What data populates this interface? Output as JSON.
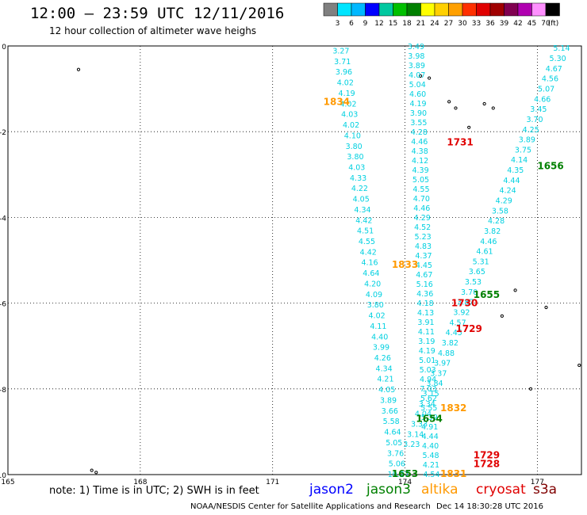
{
  "header": {
    "title": "12:00 – 23:59 UTC 12/11/2016",
    "subtitle": "12 hour collection of altimeter wave heighs"
  },
  "legend": {
    "unit": "(ft)",
    "levels": [
      "3",
      "6",
      "9",
      "12",
      "15",
      "18",
      "21",
      "24",
      "27",
      "30",
      "33",
      "36",
      "39",
      "42",
      "45",
      "70"
    ],
    "colors": [
      "#808080",
      "#00e5ff",
      "#00b8ff",
      "#0000ff",
      "#00c8a0",
      "#00c000",
      "#008000",
      "#ffff00",
      "#ffd000",
      "#ffa000",
      "#ff3000",
      "#e00000",
      "#a00000",
      "#800050",
      "#b000b0",
      "#ff90ff",
      "#000000"
    ]
  },
  "map": {
    "lon_min": 165,
    "lon_max": 178,
    "lat_min": -10,
    "lat_max": 0,
    "x_ticks": [
      {
        "value": 165,
        "label": "165"
      },
      {
        "value": 168,
        "label": "168"
      },
      {
        "value": 171,
        "label": "171"
      },
      {
        "value": 174,
        "label": "174"
      },
      {
        "value": 177,
        "label": "177"
      }
    ],
    "y_ticks": [
      {
        "value": 0,
        "label": "0"
      },
      {
        "value": -2,
        "label": "-2"
      },
      {
        "value": -4,
        "label": "-4"
      },
      {
        "value": -6,
        "label": "-6"
      },
      {
        "value": -8,
        "label": "-8"
      },
      {
        "value": -10,
        "label": "-10"
      }
    ],
    "swh_color": "#00d0e0",
    "tracks": [
      {
        "name": "pass-1834",
        "start": [
          172.55,
          -0.12
        ],
        "end": [
          173.85,
          -10.0
        ],
        "values": [
          "3.27",
          "3.71",
          "3.96",
          "4.02",
          "4.19",
          "4.02",
          "4.03",
          "4.02",
          "4.10",
          "3.80",
          "3.80",
          "4.03",
          "4.33",
          "4.22",
          "4.05",
          "4.34",
          "4.42",
          "4.51",
          "4.55",
          "4.42",
          "4.16",
          "4.64",
          "4.20",
          "4.09",
          "3.80",
          "4.02",
          "4.11",
          "4.40",
          "3.99",
          "4.26",
          "4.34",
          "4.21",
          "4.05",
          "3.89",
          "3.66",
          "5.58",
          "4.64",
          "5.05",
          "3.76",
          "5.06",
          "10.27"
        ]
      },
      {
        "name": "pass-1831",
        "start": [
          174.25,
          -0.02
        ],
        "end": [
          174.6,
          -10.0
        ],
        "values": [
          "3.49",
          "3.98",
          "3.89",
          "4.07",
          "5.04",
          "4.60",
          "4.19",
          "3.90",
          "3.55",
          "4.28",
          "4.46",
          "4.38",
          "4.12",
          "4.39",
          "5.05",
          "4.55",
          "4.70",
          "4.46",
          "4.29",
          "4.52",
          "5.23",
          "4.83",
          "4.37",
          "4.45",
          "4.67",
          "5.16",
          "4.36",
          "4.18",
          "4.13",
          "3.91",
          "4.11",
          "3.19",
          "4.19",
          "5.01",
          "5.03",
          "4.94",
          "7.03",
          "5.62",
          "5.55",
          "5.39",
          "4.91",
          "4.44",
          "4.40",
          "5.48",
          "4.21",
          "4.54"
        ]
      },
      {
        "name": "pass-1656",
        "start": [
          177.55,
          -0.06
        ],
        "end": [
          174.15,
          -9.3
        ],
        "values": [
          "5.14",
          "5.30",
          "4.67",
          "4.56",
          "5.07",
          "4.66",
          "3.45",
          "3.70",
          "4.25",
          "3.89",
          "3.75",
          "4.14",
          "4.35",
          "4.44",
          "4.24",
          "4.29",
          "3.58",
          "4.28",
          "3.82",
          "4.46",
          "4.61",
          "5.31",
          "3.65",
          "3.53",
          "3.70",
          "3.87",
          "3.92",
          "4.57",
          "4.45",
          "3.82",
          "4.88",
          "3.97",
          "3.37",
          "3.84",
          "3.15",
          "3.34",
          "4.04",
          "3.33",
          "3.14",
          "3.23"
        ]
      }
    ],
    "time_labels": [
      {
        "text": "1834",
        "lon": 172.45,
        "lat": -1.3,
        "color": "#ff9900"
      },
      {
        "text": "1731",
        "lon": 175.25,
        "lat": -2.25,
        "color": "#e00000"
      },
      {
        "text": "1656",
        "lon": 177.3,
        "lat": -2.8,
        "color": "#008000"
      },
      {
        "text": "1833",
        "lon": 174.0,
        "lat": -5.1,
        "color": "#ff9900"
      },
      {
        "text": "1655",
        "lon": 175.85,
        "lat": -5.8,
        "color": "#008000"
      },
      {
        "text": "1730",
        "lon": 175.35,
        "lat": -6.0,
        "color": "#e00000"
      },
      {
        "text": "1729",
        "lon": 175.45,
        "lat": -6.6,
        "color": "#e00000"
      },
      {
        "text": "1832",
        "lon": 175.1,
        "lat": -8.45,
        "color": "#ff9900"
      },
      {
        "text": "1654",
        "lon": 174.55,
        "lat": -8.7,
        "color": "#008000"
      },
      {
        "text": "1729",
        "lon": 175.85,
        "lat": -9.55,
        "color": "#e00000"
      },
      {
        "text": "1728",
        "lon": 175.85,
        "lat": -9.75,
        "color": "#e00000"
      },
      {
        "text": "1653",
        "lon": 174.0,
        "lat": -9.98,
        "color": "#008000"
      },
      {
        "text": "1831",
        "lon": 175.1,
        "lat": -9.98,
        "color": "#ff9900"
      }
    ],
    "islands": [
      {
        "lon": 166.6,
        "lat": -0.55
      },
      {
        "lon": 174.35,
        "lat": -0.7
      },
      {
        "lon": 174.55,
        "lat": -0.75
      },
      {
        "lon": 175.0,
        "lat": -1.3
      },
      {
        "lon": 175.15,
        "lat": -1.45
      },
      {
        "lon": 175.45,
        "lat": -1.9
      },
      {
        "lon": 175.8,
        "lat": -1.35
      },
      {
        "lon": 176.0,
        "lat": -1.45
      },
      {
        "lon": 176.5,
        "lat": -5.7
      },
      {
        "lon": 177.2,
        "lat": -6.1
      },
      {
        "lon": 176.2,
        "lat": -6.3
      },
      {
        "lon": 177.95,
        "lat": -7.45
      },
      {
        "lon": 176.85,
        "lat": -8.0
      },
      {
        "lon": 166.9,
        "lat": -9.9
      },
      {
        "lon": 167.0,
        "lat": -9.95
      }
    ]
  },
  "footer": {
    "note": "note: 1) Time is in UTC; 2) SWH is in feet",
    "satellites": [
      {
        "name": "jason2",
        "color": "#0000ff"
      },
      {
        "name": "jason3",
        "color": "#008000"
      },
      {
        "name": "altika",
        "color": "#ff9900"
      },
      {
        "name": "cryosat",
        "color": "#e00000"
      },
      {
        "name": "s3a",
        "color": "#800000"
      }
    ],
    "credit": "NOAA/NESDIS Center for Satellite Applications and Research",
    "timestamp": "Dec 14 18:30:28 UTC 2016"
  }
}
